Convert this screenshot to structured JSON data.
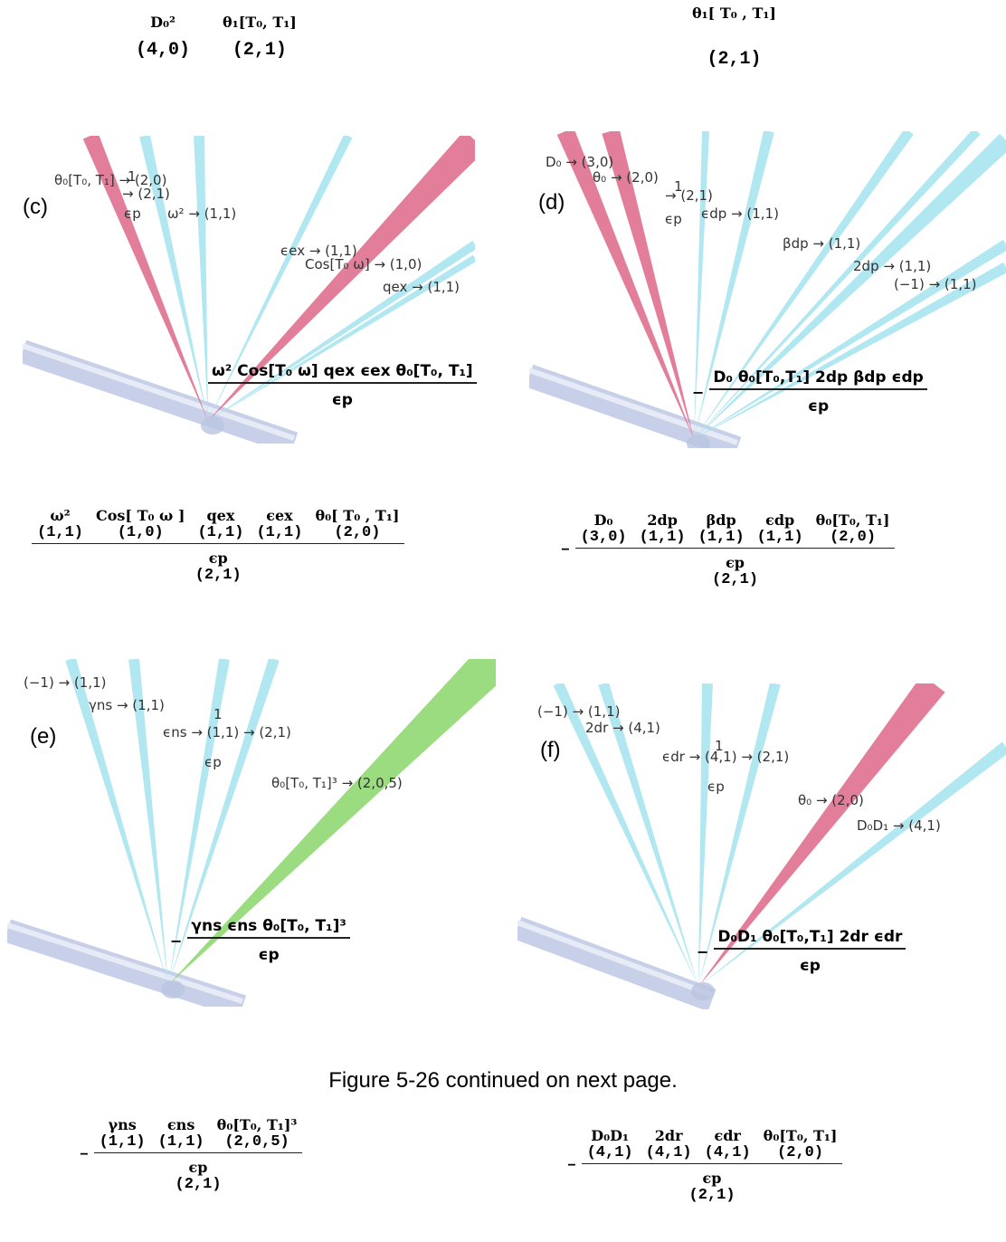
{
  "top": {
    "left": [
      {
        "sym": "D₀²",
        "tag": "(4,0)"
      },
      {
        "sym": "θ₁[T₀, T₁]",
        "tag": "(2,1)"
      }
    ],
    "right": {
      "sym": "θ₁[ T₀ , T₁]",
      "tag": "(2,1)"
    }
  },
  "panels": [
    {
      "label": "(c)",
      "annotations": [
        "θ₀[T₀, T₁] → (2,0)",
        "→ (2,1)",
        "1",
        "ϵp",
        "ω² → (1,1)",
        "ϵex → (1,1)",
        "Cos[T₀ ω] → (1,0)",
        "qex → (1,1)"
      ],
      "formula": {
        "numerator": "ω² Cos[T₀ ω] qex ϵex θ₀[T₀, T₁]",
        "denominator": "ϵp"
      },
      "expansion": {
        "terms": [
          {
            "sym": "ω²",
            "tag": "(1,1)"
          },
          {
            "sym": "Cos[ T₀ ω ]",
            "tag": "(1,0)"
          },
          {
            "sym": "qex",
            "tag": "(1,1)"
          },
          {
            "sym": "ϵex",
            "tag": "(1,1)"
          },
          {
            "sym": "θ₀[ T₀ , T₁]",
            "tag": "(2,0)"
          }
        ],
        "denominator": {
          "sym": "ϵp",
          "tag": "(2,1)"
        }
      }
    },
    {
      "label": "(d)",
      "annotations": [
        "D₀ → (3,0)",
        "θ₀ → (2,0)",
        "1",
        "→ (2,1)",
        "ϵp",
        "ϵdp → (1,1)",
        "βdp → (1,1)",
        "2dp → (1,1)",
        "(−1) → (1,1)"
      ],
      "formula": {
        "sign": "−",
        "numerator": "D₀ θ₀[T₀,T₁] 2dp βdp ϵdp",
        "denominator": "ϵp"
      },
      "expansion": {
        "sign": "−",
        "terms": [
          {
            "sym": "D₀",
            "tag": "(3,0)"
          },
          {
            "sym": "2dp",
            "tag": "(1,1)"
          },
          {
            "sym": "βdp",
            "tag": "(1,1)"
          },
          {
            "sym": "ϵdp",
            "tag": "(1,1)"
          },
          {
            "sym": "θ₀[T₀, T₁]",
            "tag": "(2,0)"
          }
        ],
        "denominator": {
          "sym": "ϵp",
          "tag": "(2,1)"
        }
      }
    },
    {
      "label": "(e)",
      "annotations": [
        "(−1) → (1,1)",
        "γns → (1,1)",
        "1",
        "ϵns → (1,1) → (2,1)",
        "ϵp",
        "θ₀[T₀, T₁]³ → (2,0,5)"
      ],
      "formula": {
        "sign": "−",
        "numerator": "γns ϵns θ₀[T₀, T₁]³",
        "denominator": "ϵp"
      },
      "expansion": {
        "sign": "−",
        "terms": [
          {
            "sym": "γns",
            "tag": "(1,1)"
          },
          {
            "sym": "ϵns",
            "tag": "(1,1)"
          },
          {
            "sym": "θ₀[T₀, T₁]³",
            "tag": "(2,0,5)"
          }
        ],
        "denominator": {
          "sym": "ϵp",
          "tag": "(2,1)"
        }
      }
    },
    {
      "label": "(f)",
      "annotations": [
        "(−1) → (1,1)",
        "2dr → (4,1)",
        "1",
        "ϵdr → (4,1) → (2,1)",
        "ϵp",
        "θ₀ → (2,0)",
        "D₀D₁ → (4,1)"
      ],
      "formula": {
        "sign": "−",
        "numerator": "D₀D₁ θ₀[T₀,T₁] 2dr ϵdr",
        "denominator": "ϵp"
      },
      "expansion": {
        "sign": "−",
        "terms": [
          {
            "sym": "D₀D₁",
            "tag": "(4,1)"
          },
          {
            "sym": "2dr",
            "tag": "(4,1)"
          },
          {
            "sym": "ϵdr",
            "tag": "(4,1)"
          },
          {
            "sym": "θ₀[T₀, T₁]",
            "tag": "(2,0)"
          }
        ],
        "denominator": {
          "sym": "ϵp",
          "tag": "(2,1)"
        }
      }
    }
  ],
  "caption": "Figure 5-26 continued on next page."
}
